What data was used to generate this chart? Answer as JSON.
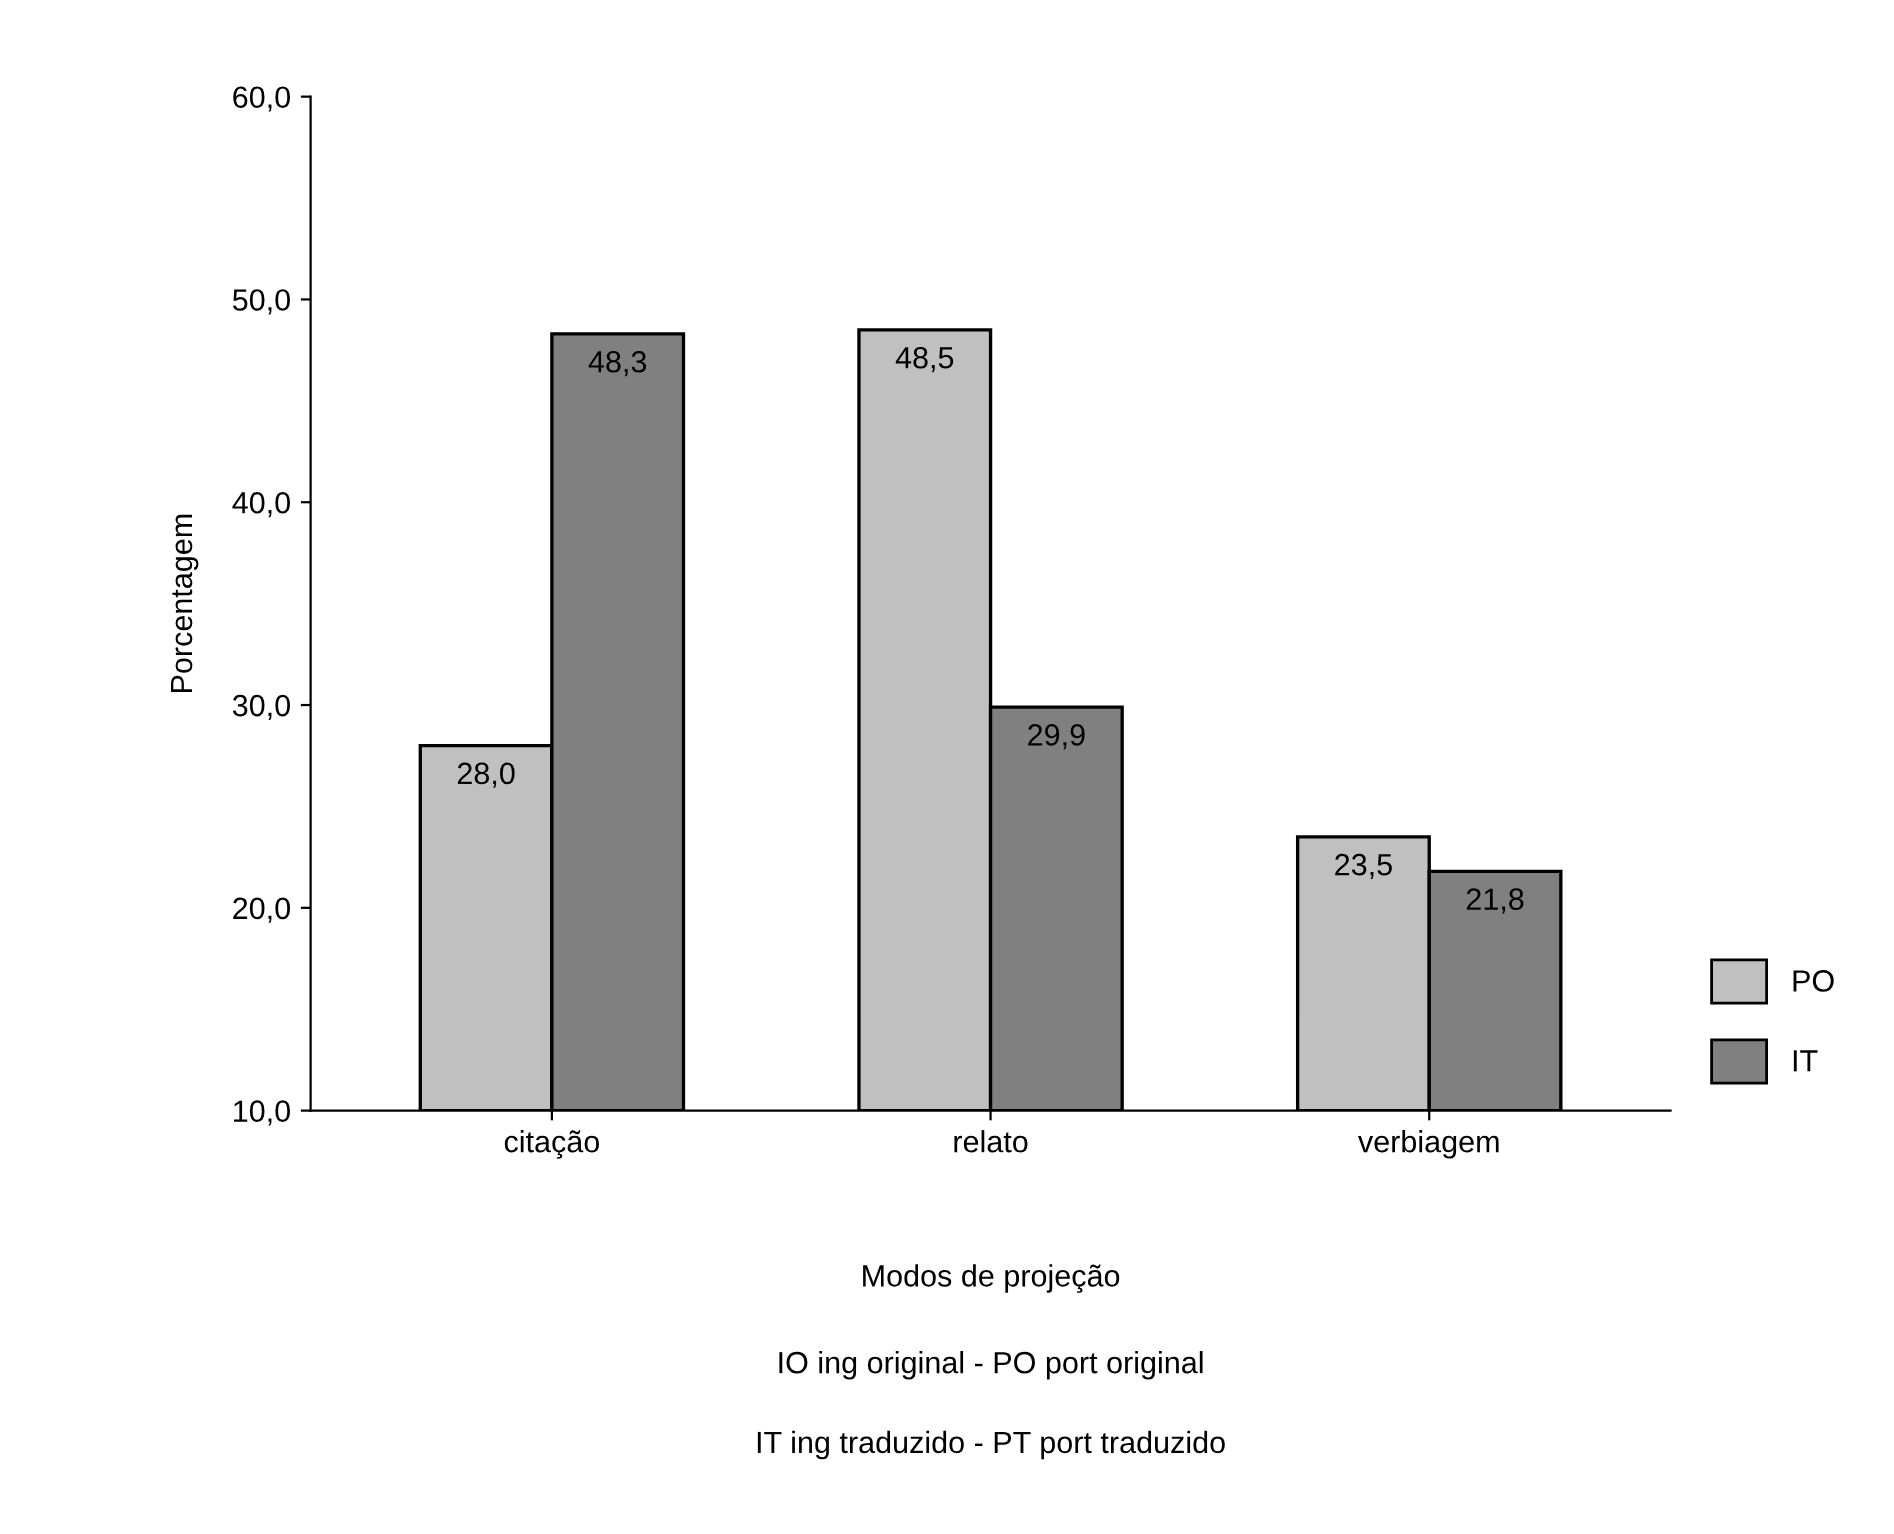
{
  "chart_data": {
    "type": "bar",
    "xlabel": "Modos de projeção",
    "ylabel": "Porcentagem",
    "categories": [
      "citação",
      "relato",
      "verbiagem"
    ],
    "series": [
      {
        "name": "PO",
        "color": "#c0c0c0",
        "values": [
          28.0,
          48.5,
          23.5
        ],
        "value_labels": [
          "28,0",
          "48,5",
          "23,5"
        ]
      },
      {
        "name": "IT",
        "color": "#808080",
        "values": [
          48.3,
          29.9,
          21.8
        ],
        "value_labels": [
          "48,3",
          "29,9",
          "21,8"
        ]
      }
    ],
    "ylim": [
      10,
      60
    ],
    "yticks": [
      {
        "value": 10,
        "label": "10,0"
      },
      {
        "value": 20,
        "label": "20,0"
      },
      {
        "value": 30,
        "label": "30,0"
      },
      {
        "value": 40,
        "label": "40,0"
      },
      {
        "value": 50,
        "label": "50,0"
      },
      {
        "value": 60,
        "label": "60,0"
      }
    ],
    "legend": "bottom right",
    "annotations": [
      "IO ing original - PO port original",
      "IT ing traduzido - PT port traduzido"
    ]
  }
}
